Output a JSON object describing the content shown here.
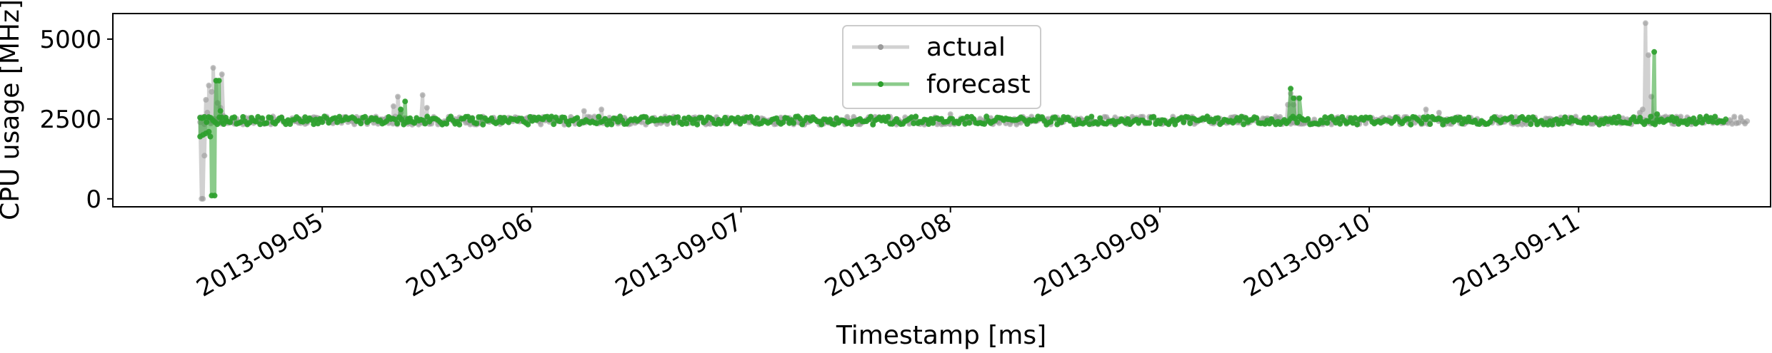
{
  "chart_data": {
    "type": "line",
    "title": "",
    "xlabel": "Timestamp [ms]",
    "ylabel": "CPU usage [MHz]",
    "x_range": [
      "2013-09-04T00:00",
      "2013-09-11T22:00"
    ],
    "ylim": [
      -250,
      5800
    ],
    "x_ticks": [
      "2013-09-05",
      "2013-09-06",
      "2013-09-07",
      "2013-09-08",
      "2013-09-09",
      "2013-09-10",
      "2013-09-11"
    ],
    "y_ticks": [
      0,
      2500,
      5000
    ],
    "legend": {
      "placement": "top-center",
      "entries": [
        "actual",
        "forecast"
      ]
    },
    "colors": {
      "actual": "#9a9a9a",
      "forecast": "#2ca02c",
      "axis": "#000000",
      "legend_border": "#cccccc"
    },
    "baseline": 2450,
    "series": [
      {
        "name": "actual",
        "points": [
          [
            "2013-09-04T10:00",
            2400
          ],
          [
            "2013-09-04T10:10",
            0
          ],
          [
            "2013-09-04T10:20",
            0
          ],
          [
            "2013-09-04T10:30",
            1350
          ],
          [
            "2013-09-04T10:40",
            3100
          ],
          [
            "2013-09-04T10:50",
            2700
          ],
          [
            "2013-09-04T11:00",
            3550
          ],
          [
            "2013-09-04T11:10",
            2450
          ],
          [
            "2013-09-04T11:20",
            3350
          ],
          [
            "2013-09-04T11:30",
            4100
          ],
          [
            "2013-09-04T11:40",
            2500
          ],
          [
            "2013-09-04T11:50",
            3700
          ],
          [
            "2013-09-04T12:00",
            3000
          ],
          [
            "2013-09-04T12:10",
            2450
          ],
          [
            "2013-09-04T12:20",
            2850
          ],
          [
            "2013-09-04T12:30",
            3900
          ],
          [
            "2013-09-04T12:40",
            2600
          ],
          [
            "2013-09-04T13:00",
            2450
          ],
          [
            "2013-09-05T08:10",
            2900
          ],
          [
            "2013-09-05T08:40",
            3200
          ],
          [
            "2013-09-05T09:00",
            2700
          ],
          [
            "2013-09-05T11:30",
            3250
          ],
          [
            "2013-09-05T12:00",
            2850
          ],
          [
            "2013-09-06T06:00",
            2750
          ],
          [
            "2013-09-06T08:00",
            2800
          ],
          [
            "2013-09-08T00:00",
            2650
          ],
          [
            "2013-09-09T14:40",
            2950
          ],
          [
            "2013-09-09T15:00",
            3300
          ],
          [
            "2013-09-09T15:20",
            2950
          ],
          [
            "2013-09-09T15:40",
            3150
          ],
          [
            "2013-09-10T06:30",
            2800
          ],
          [
            "2013-09-10T08:00",
            2700
          ],
          [
            "2013-09-11T07:00",
            2700
          ],
          [
            "2013-09-11T07:20",
            2800
          ],
          [
            "2013-09-11T07:40",
            5500
          ],
          [
            "2013-09-11T08:00",
            4500
          ],
          [
            "2013-09-11T08:20",
            3200
          ],
          [
            "2013-09-11T08:40",
            2600
          ]
        ]
      },
      {
        "name": "forecast",
        "points": [
          [
            "2013-09-04T10:00",
            1950
          ],
          [
            "2013-09-04T10:20",
            2000
          ],
          [
            "2013-09-04T10:40",
            2050
          ],
          [
            "2013-09-04T11:00",
            2100
          ],
          [
            "2013-09-04T11:10",
            1950
          ],
          [
            "2013-09-04T11:20",
            100
          ],
          [
            "2013-09-04T11:40",
            100
          ],
          [
            "2013-09-04T11:50",
            3700
          ],
          [
            "2013-09-04T12:10",
            3700
          ],
          [
            "2013-09-04T12:20",
            2750
          ],
          [
            "2013-09-04T12:30",
            2550
          ],
          [
            "2013-09-04T13:00",
            2450
          ],
          [
            "2013-09-05T09:00",
            2800
          ],
          [
            "2013-09-05T09:30",
            3050
          ],
          [
            "2013-09-05T09:50",
            2500
          ],
          [
            "2013-09-09T15:00",
            3450
          ],
          [
            "2013-09-09T15:20",
            3150
          ],
          [
            "2013-09-09T16:00",
            3150
          ],
          [
            "2013-09-09T16:20",
            2500
          ],
          [
            "2013-09-11T08:40",
            4600
          ],
          [
            "2013-09-11T09:00",
            2650
          ]
        ]
      }
    ]
  }
}
